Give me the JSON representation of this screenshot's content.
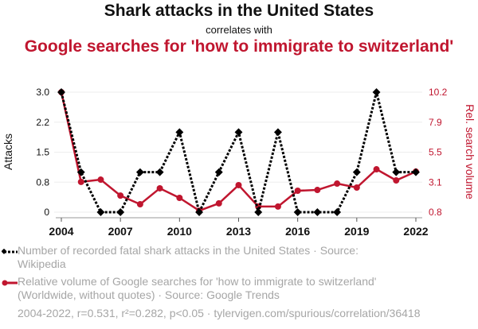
{
  "title": "Shark attacks in the United States",
  "subtitle": "correlates with",
  "title2": "Google searches for 'how to immigrate to switzerland'",
  "legend": {
    "series1": "Number of recorded fatal shark attacks in the United States · Source: Wikipedia",
    "series2": "Relative volume of Google searches for 'how to immigrate to switzerland' (Worldwide, without quotes) · Source: Google Trends"
  },
  "footer": "2004-2022, r=0.531, r²=0.282, p<0.05 · tylervigen.com/spurious/correlation/36418",
  "colors": {
    "series1": "#000000",
    "series2": "#c0162f",
    "grid": "#eeeeee"
  },
  "chart_data": {
    "type": "line",
    "title": "Shark attacks in the United States correlates with Google searches for 'how to immigrate to switzerland'",
    "x": [
      2004,
      2005,
      2006,
      2007,
      2008,
      2009,
      2010,
      2011,
      2012,
      2013,
      2014,
      2015,
      2016,
      2017,
      2018,
      2019,
      2020,
      2021,
      2022
    ],
    "xlabel": "",
    "xticks": [
      "2004",
      "2007",
      "2010",
      "2013",
      "2016",
      "2019",
      "2022"
    ],
    "series": [
      {
        "name": "Number of recorded fatal shark attacks in the United States",
        "axis": "left",
        "values": [
          3,
          1,
          0,
          0,
          1,
          1,
          2,
          0,
          1,
          2,
          0,
          2,
          0,
          0,
          0,
          1,
          3,
          1,
          1
        ]
      },
      {
        "name": "Relative volume of Google searches for 'how to immigrate to switzerland'",
        "axis": "right",
        "values": [
          10.2,
          3.17,
          3.35,
          2.1,
          1.42,
          2.67,
          1.92,
          0.92,
          1.49,
          2.92,
          1.24,
          1.24,
          2.48,
          2.54,
          3.04,
          2.73,
          4.16,
          3.29,
          3.98
        ]
      }
    ],
    "ylabel_left": "Attacks",
    "ylabel_right": "Rel. search volume",
    "yticks_left": [
      "3.0",
      "2.2",
      "1.5",
      "0.8",
      "0"
    ],
    "yticks_right": [
      "10.2",
      "7.9",
      "5.5",
      "3.1",
      "0.8"
    ],
    "ylim_left": [
      0,
      3
    ],
    "ylim_right": [
      0.8,
      10.2
    ],
    "grid": true,
    "legend_position": "bottom"
  }
}
